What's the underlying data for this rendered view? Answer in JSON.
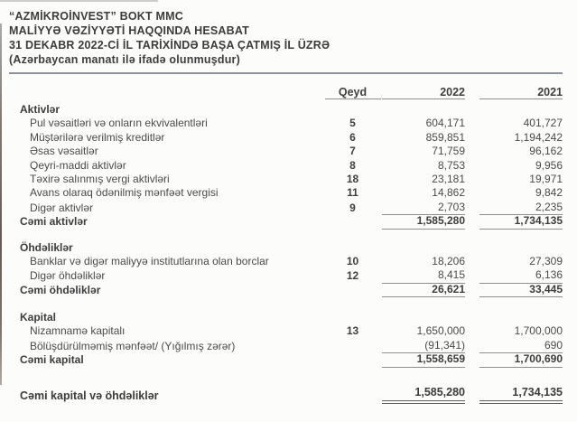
{
  "document": {
    "title_lines": [
      "“AZMİKROİNVEST” BOKT MMC",
      "MALİYYƏ VƏZİYYƏTİ HAQQINDA HESABAT",
      "31 DEKABR 2022-Cİ İL TARİXİNDƏ BAŞA ÇATMIŞ İL ÜZRƏ",
      "(Azərbaycan manatı ilə ifadə olunmuşdur)"
    ],
    "table": {
      "col_headers": {
        "note": "Qeyd",
        "y2022": "2022",
        "y2021": "2021"
      },
      "rows": [
        {
          "type": "section",
          "label": "Aktivlər"
        },
        {
          "type": "item",
          "label": "Pul vəsaitləri və onların ekvivalentləri",
          "note": "5",
          "v2022": "604,171",
          "v2021": "401,727"
        },
        {
          "type": "item",
          "label": "Müştərilərə verilmiş kreditlər",
          "note": "6",
          "v2022": "859,851",
          "v2021": "1,194,242"
        },
        {
          "type": "item",
          "label": "Əsas vəsaitlər",
          "note": "7",
          "v2022": "71,759",
          "v2021": "96,162"
        },
        {
          "type": "item",
          "label": "Qeyri-maddi aktivlər",
          "note": "8",
          "v2022": "8,753",
          "v2021": "9,956"
        },
        {
          "type": "item",
          "label": "Təxirə salınmış vergi aktivləri",
          "note": "18",
          "v2022": "23,181",
          "v2021": "19,971"
        },
        {
          "type": "item",
          "label": "Avans olaraq ödənilmiş mənfəət vergisi",
          "note": "11",
          "v2022": "14,862",
          "v2021": "9,842"
        },
        {
          "type": "item",
          "label": "Digər aktivlər",
          "note": "9",
          "v2022": "2,703",
          "v2021": "2,235",
          "u": true
        },
        {
          "type": "total",
          "label": "Cəmi aktivlər",
          "v2022": "1,585,280",
          "v2021": "1,734,135",
          "u": true
        },
        {
          "type": "spacer",
          "h": 14
        },
        {
          "type": "section",
          "label": "Öhdəliklər"
        },
        {
          "type": "item",
          "label": "Banklar və digər maliyyə institutlarına olan borclar",
          "note": "10",
          "v2022": "18,206",
          "v2021": "27,309"
        },
        {
          "type": "item",
          "label": "Digər öhdəliklər",
          "note": "12",
          "v2022": "8,415",
          "v2021": "6,136",
          "u": true
        },
        {
          "type": "total",
          "label": "Cəmi öhdəliklər",
          "v2022": "26,621",
          "v2021": "33,445",
          "u": true
        },
        {
          "type": "spacer",
          "h": 16
        },
        {
          "type": "section",
          "label": "Kapital"
        },
        {
          "type": "item",
          "label": "Nizamnamə kapitalı",
          "note": "13",
          "v2022": "1,650,000",
          "v2021": "1,700,000"
        },
        {
          "type": "item",
          "label": "Bölüşdürülməmiş mənfəət/ (Yığılmış zərər)",
          "v2022": "(91,341)",
          "v2021": "690",
          "u": true
        },
        {
          "type": "total",
          "label": "Cəmi kapital",
          "v2022": "1,558,659",
          "v2021": "1,700,690",
          "u": true
        },
        {
          "type": "spacer",
          "h": 20
        },
        {
          "type": "grand",
          "label": "Cəmi kapital və öhdəliklər",
          "v2022": "1,585,280",
          "v2021": "1,734,135",
          "dd": true
        }
      ]
    },
    "colors": {
      "background": "#fcfcfb",
      "text": "#4a4a4a",
      "text_bold": "#3c3c3c",
      "rule": "#8b9196",
      "underline": "#8f8f8f"
    }
  }
}
